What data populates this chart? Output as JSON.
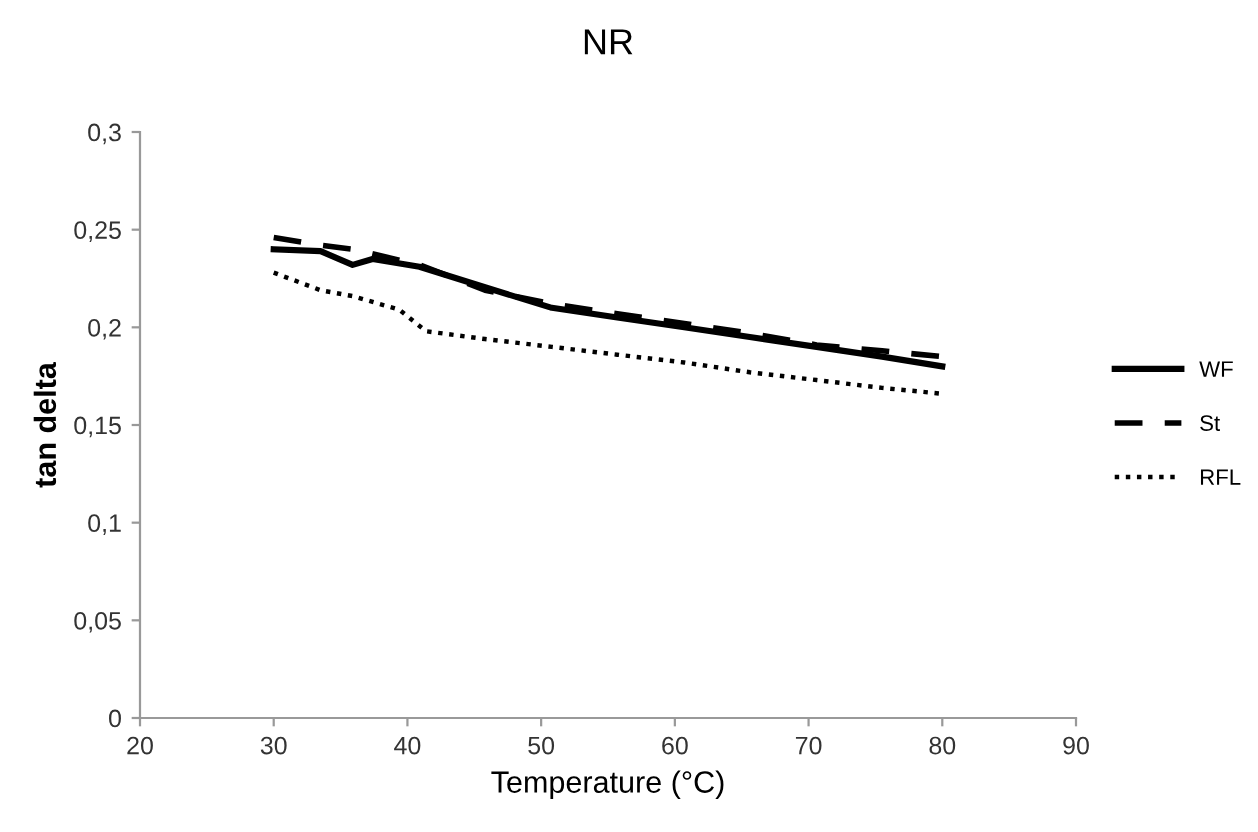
{
  "chart_data": {
    "type": "line",
    "title": "NR",
    "xlabel": "Temperature (°C)",
    "ylabel": "tan delta",
    "xlim": [
      20,
      90
    ],
    "xticks": [
      20,
      30,
      40,
      50,
      60,
      70,
      80,
      90
    ],
    "ylim": [
      0,
      0.3
    ],
    "yticks": [
      {
        "value": 0,
        "label": "0"
      },
      {
        "value": 0.05,
        "label": "0,05"
      },
      {
        "value": 0.1,
        "label": "0,1"
      },
      {
        "value": 0.15,
        "label": "0,15"
      },
      {
        "value": 0.2,
        "label": "0,2"
      },
      {
        "value": 0.25,
        "label": "0,25"
      },
      {
        "value": 0.3,
        "label": "0,3"
      }
    ],
    "grid": false,
    "legend": "right",
    "series": [
      {
        "name": "WF",
        "color": "#000000",
        "line_style": "solid",
        "x": [
          30,
          33.5,
          35.9,
          37.4,
          40.9,
          45.8,
          50.8,
          55.7,
          60.7,
          65.6,
          70.6,
          75.5,
          80
        ],
        "values": [
          0.24,
          0.239,
          0.232,
          0.235,
          0.231,
          0.2205,
          0.21,
          0.205,
          0.2,
          0.195,
          0.19,
          0.185,
          0.18
        ]
      },
      {
        "name": "St",
        "color": "#000000",
        "line_style": "dashed",
        "x": [
          30,
          33.5,
          35.9,
          40.9,
          45.8,
          50.8,
          55.7,
          60.7,
          65.6,
          70.6,
          75.5,
          80
        ],
        "values": [
          0.246,
          0.242,
          0.24,
          0.232,
          0.219,
          0.212,
          0.207,
          0.202,
          0.197,
          0.191,
          0.188,
          0.185
        ]
      },
      {
        "name": "RFL",
        "color": "#000000",
        "line_style": "dotted",
        "x": [
          30,
          33.5,
          35.9,
          39.4,
          41.4,
          45.8,
          50.8,
          55.7,
          60.7,
          65.6,
          70.6,
          75.5,
          80
        ],
        "values": [
          0.228,
          0.219,
          0.216,
          0.209,
          0.198,
          0.194,
          0.19,
          0.186,
          0.182,
          0.177,
          0.173,
          0.169,
          0.166
        ]
      }
    ]
  }
}
